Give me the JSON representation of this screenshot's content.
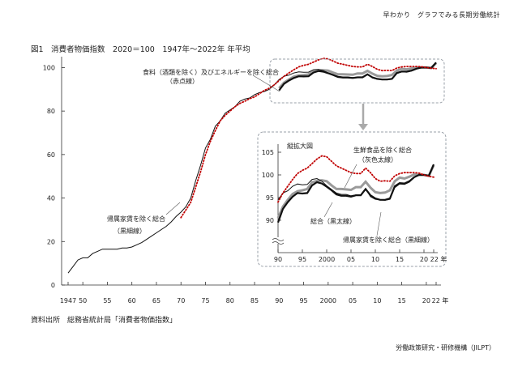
{
  "header": "早わかり　グラフでみる長期労働統計",
  "figure_title": "図1　消費者物価指数　2020＝100　1947年～2022年 年平均",
  "source": "資料出所　総務省統計局「消費者物価指数」",
  "organization": "労働政策研究・研修機構（JILPT）",
  "colors": {
    "food_energy": "#c00000",
    "ex_rent_fresh": "#9a9a9a",
    "general": "#111111",
    "ex_rent": "#111111",
    "inset_box": "#9aa0a8"
  },
  "chart_data": [
    {
      "type": "line",
      "title": "",
      "xlabel": "年",
      "ylabel": "",
      "xlim": [
        1947,
        2022
      ],
      "ylim": [
        0,
        105
      ],
      "x_ticks": [
        "1947",
        "50",
        "55",
        "60",
        "65",
        "70",
        "75",
        "80",
        "85",
        "90",
        "95",
        "2000",
        "05",
        "10",
        "15",
        "20",
        "22 年"
      ],
      "y_ticks": [
        0,
        20,
        40,
        60,
        80,
        100
      ],
      "annotations": [
        "食料（酒類を除く）及びエネルギーを除く総合",
        "（赤点線）",
        "帰属家賃を除く総合",
        "（黒細線）"
      ],
      "series": [
        {
          "name": "帰属家賃を除く総合",
          "style": "black thin",
          "x": [
            1947,
            1948,
            1949,
            1950,
            1951,
            1952,
            1953,
            1954,
            1955,
            1956,
            1957,
            1958,
            1959,
            1960,
            1961,
            1962,
            1963,
            1964,
            1965,
            1966,
            1967,
            1968,
            1969,
            1970,
            1971,
            1972,
            1973,
            1974,
            1975,
            1976,
            1977,
            1978,
            1979,
            1980,
            1981,
            1982,
            1983,
            1984,
            1985,
            1986,
            1987,
            1988,
            1989,
            1990,
            1991,
            1992,
            1993,
            1994,
            1995,
            1996,
            1997,
            1998,
            1999,
            2000,
            2001,
            2002,
            2003,
            2004,
            2005,
            2006,
            2007,
            2008,
            2009,
            2010,
            2011,
            2012,
            2013,
            2014,
            2015,
            2016,
            2017,
            2018,
            2019,
            2020,
            2021,
            2022
          ],
          "values": [
            5.5,
            8.5,
            11.5,
            12.5,
            12.5,
            14.5,
            15.5,
            16.5,
            16.5,
            16.5,
            16.5,
            17,
            17,
            17.5,
            18.5,
            19.5,
            21,
            22.5,
            24,
            25.5,
            27,
            29,
            31.5,
            33.5,
            36,
            40,
            48,
            55,
            63,
            67,
            73,
            75.5,
            79,
            80.5,
            82,
            84.5,
            85.5,
            86,
            87.5,
            88.5,
            89,
            90,
            92,
            94.5,
            96,
            96.5,
            97.5,
            98,
            97.8,
            97.9,
            99,
            99.2,
            98.6,
            97.6,
            96.8,
            96,
            95.7,
            95.7,
            95.4,
            95.6,
            95.6,
            97,
            95.2,
            94.6,
            94.5,
            94.4,
            94.6,
            97.2,
            98,
            97.9,
            98.4,
            99.4,
            100,
            100,
            99.8,
            102.3
          ]
        },
        {
          "name": "総合",
          "style": "black bold",
          "x": [
            1990,
            1991,
            1992,
            1993,
            1994,
            1995,
            1996,
            1997,
            1998,
            1999,
            2000,
            2001,
            2002,
            2003,
            2004,
            2005,
            2006,
            2007,
            2008,
            2009,
            2010,
            2011,
            2012,
            2013,
            2014,
            2015,
            2016,
            2017,
            2018,
            2019,
            2020,
            2021,
            2022
          ],
          "values": [
            89.5,
            92.5,
            94,
            95.2,
            96,
            95.9,
            96,
            97.7,
            98.4,
            98.1,
            97.4,
            96.6,
            95.7,
            95.4,
            95.4,
            95.2,
            95.5,
            95.5,
            96.9,
            95.5,
            94.8,
            94.5,
            94.5,
            94.8,
            97.5,
            98.2,
            98.1,
            98.6,
            99.5,
            100,
            100,
            99.8,
            102.3
          ]
        },
        {
          "name": "生鮮食品を除く総合",
          "style": "gray bold",
          "x": [
            1990,
            1991,
            1992,
            1993,
            1994,
            1995,
            1996,
            1997,
            1998,
            1999,
            2000,
            2001,
            2002,
            2003,
            2004,
            2005,
            2006,
            2007,
            2008,
            2009,
            2010,
            2011,
            2012,
            2013,
            2014,
            2015,
            2016,
            2017,
            2018,
            2019,
            2020,
            2021,
            2022
          ],
          "values": [
            90.5,
            93,
            94.5,
            95.8,
            96.4,
            96.6,
            96.9,
            98.4,
            98.7,
            98.8,
            98.6,
            97.7,
            96.9,
            96.9,
            96.8,
            96.7,
            97.3,
            97.3,
            98.5,
            97.2,
            96.2,
            96.0,
            96.1,
            96.6,
            98.6,
            99.4,
            99.2,
            99.6,
            100.1,
            100,
            100,
            99.8,
            102.1
          ]
        },
        {
          "name": "食料（酒類を除く）及びエネルギーを除く総合",
          "style": "red dotted",
          "x": [
            1970,
            1971,
            1972,
            1973,
            1974,
            1975,
            1976,
            1977,
            1978,
            1979,
            1980,
            1981,
            1982,
            1983,
            1984,
            1985,
            1986,
            1987,
            1988,
            1989,
            1990,
            1991,
            1992,
            1993,
            1994,
            1995,
            1996,
            1997,
            1998,
            1999,
            2000,
            2001,
            2002,
            2003,
            2004,
            2005,
            2006,
            2007,
            2008,
            2009,
            2010,
            2011,
            2012,
            2013,
            2014,
            2015,
            2016,
            2017,
            2018,
            2019,
            2020,
            2021,
            2022
          ],
          "values": [
            31,
            34.5,
            38,
            45,
            52,
            60,
            66,
            71,
            75.5,
            78,
            80,
            82,
            83.5,
            84.5,
            85.7,
            86.5,
            88,
            89.5,
            90.5,
            92,
            94,
            96,
            97.5,
            99,
            100.3,
            101,
            101.5,
            102.5,
            103.5,
            104.2,
            104,
            103,
            102,
            101.5,
            101,
            100.5,
            100.3,
            100.3,
            101.5,
            100.5,
            99.2,
            98.6,
            98.7,
            98.6,
            99.8,
            100.3,
            100.5,
            100.5,
            100.5,
            100.4,
            100,
            99.7,
            99.5
          ]
        }
      ]
    },
    {
      "type": "line",
      "title": "縦拡大図",
      "xlabel": "年",
      "ylabel": "",
      "xlim": [
        1990,
        2022
      ],
      "ylim": [
        85,
        105
      ],
      "x_ticks": [
        "90",
        "95",
        "2000",
        "05",
        "10",
        "15",
        "20",
        "22 年"
      ],
      "y_ticks": [
        90,
        95,
        100,
        105
      ],
      "axis_break": "≈",
      "annotations": [
        "生鮮食品を除く総合",
        "（灰色太線）",
        "総合（黒太線）",
        "帰属家賃を除く総合（黒細線）"
      ]
    }
  ]
}
